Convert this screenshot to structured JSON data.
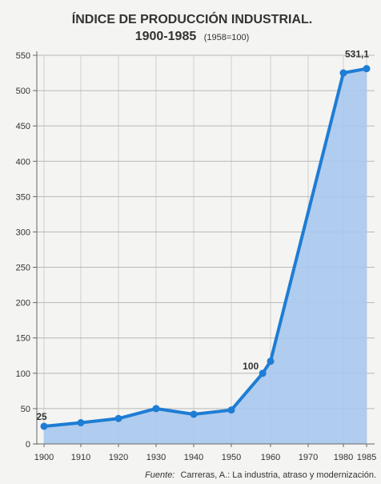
{
  "chart_data": {
    "type": "area",
    "title": "ÍNDICE DE PRODUCCIÓN INDUSTRIAL.",
    "subtitle_main": "1900-1985",
    "subtitle_note": "(1958=100)",
    "source_label": "Fuente:",
    "source_text": "Carreras, A.: La industria, atraso y modernización.",
    "x_ticks": [
      "1900",
      "1910",
      "1920",
      "1930",
      "1940",
      "1950",
      "1960",
      "1970",
      "1980",
      "1985"
    ],
    "y_ticks": [
      "0",
      "50",
      "100",
      "150",
      "200",
      "250",
      "300",
      "350",
      "400",
      "450",
      "500",
      "550"
    ],
    "ylim": [
      0,
      550
    ],
    "grid": true,
    "x": [
      1900,
      1910,
      1920,
      1930,
      1940,
      1950,
      1958,
      1960,
      1980,
      1985
    ],
    "values": [
      25,
      30,
      36,
      50,
      42,
      48,
      100,
      117,
      525,
      531.1
    ],
    "data_labels": [
      {
        "year": 1900,
        "text": "25"
      },
      {
        "year": 1958,
        "text": "100"
      },
      {
        "year": 1985,
        "text": "531,1"
      }
    ],
    "colors": {
      "line": "#1e7dd4",
      "fill": "#a9c8ee",
      "grid": "#b8b8b8",
      "text": "#333333"
    }
  }
}
